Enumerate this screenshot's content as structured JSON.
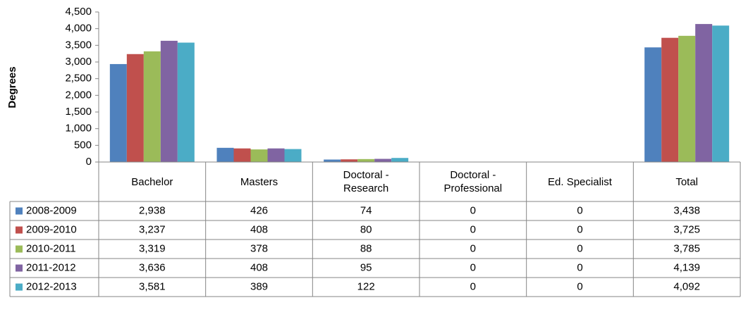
{
  "chart_data": {
    "type": "bar",
    "y_label": "Degrees",
    "categories": [
      "Bachelor",
      "Masters",
      "Doctoral - Research",
      "Doctoral - Professional",
      "Ed. Specialist",
      "Total"
    ],
    "series": [
      {
        "name": "2008-2009",
        "color": "#4f81bd",
        "values": [
          2938,
          426,
          74,
          0,
          0,
          3438
        ],
        "value_labels": [
          "2,938",
          "426",
          "74",
          "0",
          "0",
          "3,438"
        ]
      },
      {
        "name": "2009-2010",
        "color": "#c0504d",
        "values": [
          3237,
          408,
          80,
          0,
          0,
          3725
        ],
        "value_labels": [
          "3,237",
          "408",
          "80",
          "0",
          "0",
          "3,725"
        ]
      },
      {
        "name": "2010-2011",
        "color": "#9bbb59",
        "values": [
          3319,
          378,
          88,
          0,
          0,
          3785
        ],
        "value_labels": [
          "3,319",
          "378",
          "88",
          "0",
          "0",
          "3,785"
        ]
      },
      {
        "name": "2011-2012",
        "color": "#8064a2",
        "values": [
          3636,
          408,
          95,
          0,
          0,
          4139
        ],
        "value_labels": [
          "3,636",
          "408",
          "95",
          "0",
          "0",
          "4,139"
        ]
      },
      {
        "name": "2012-2013",
        "color": "#4bacc6",
        "values": [
          3581,
          389,
          122,
          0,
          0,
          4092
        ],
        "value_labels": [
          "3,581",
          "389",
          "122",
          "0",
          "0",
          "4,092"
        ]
      }
    ],
    "ylim": [
      0,
      4500
    ],
    "yticks": [
      0,
      500,
      {
        "value": 1000,
        "label": "1,000"
      },
      {
        "value": 1500,
        "label": "1,500"
      },
      {
        "value": 2000,
        "label": "2,000"
      },
      {
        "value": 2500,
        "label": "2,500"
      },
      {
        "value": 3000,
        "label": "3,000"
      },
      {
        "value": 3500,
        "label": "3,500"
      },
      {
        "value": 4000,
        "label": "4,000"
      },
      {
        "value": 4500,
        "label": "4,500"
      }
    ],
    "grid": false
  }
}
